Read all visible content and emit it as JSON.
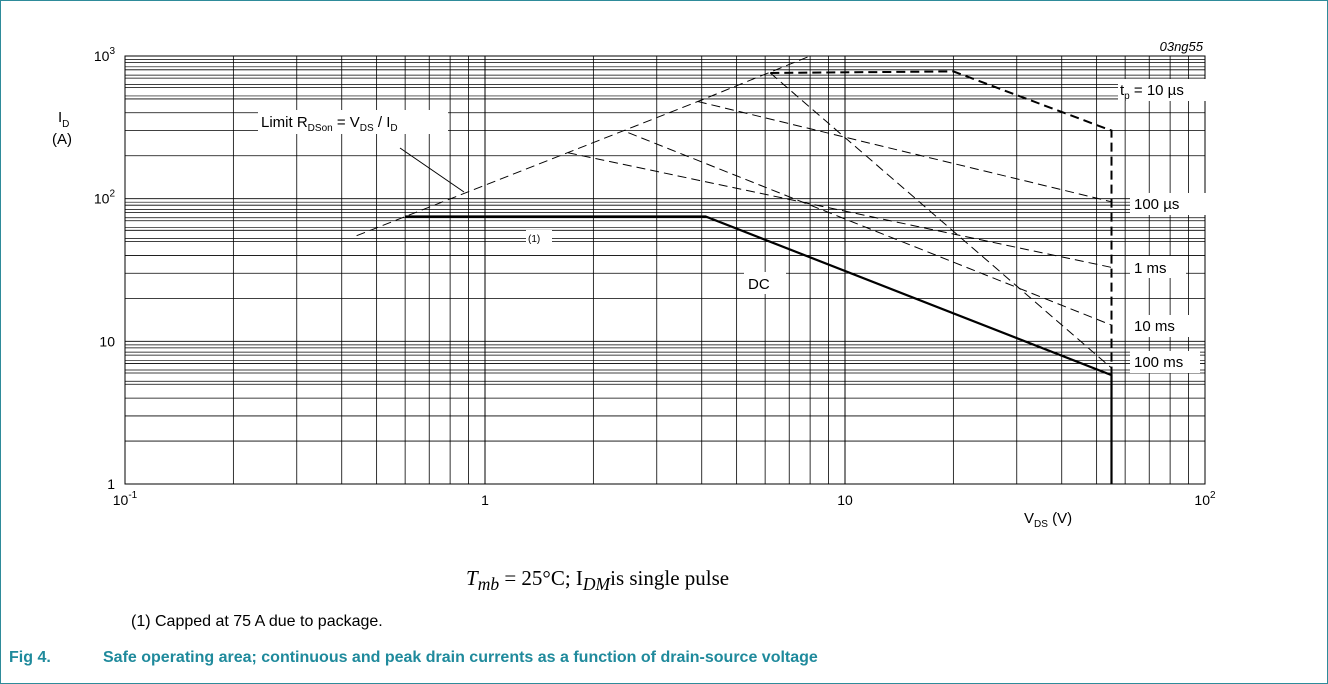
{
  "figure": {
    "code": "03ng55",
    "number": "Fig 4.",
    "caption": "Safe operating area; continuous and peak drain currents as a function of drain-source voltage",
    "condition": {
      "prefix": "T",
      "prefix_sub": "mb",
      "middle": " = 25°C; I",
      "middle_sub": "DM",
      "suffix": "is single pulse"
    },
    "footnote": "(1) Capped at 75 A due to package."
  },
  "chart_data": {
    "type": "line",
    "x_scale": "log",
    "y_scale": "log",
    "xlim": [
      0.1,
      100
    ],
    "ylim": [
      1,
      1000
    ],
    "grid": true,
    "xlabel": {
      "main": "V",
      "sub": "DS",
      "unit": " (V)"
    },
    "ylabel": {
      "main": "I",
      "sub": "D",
      "unit": "(A)"
    },
    "x_ticks": [
      {
        "value": 0.1,
        "base": "10",
        "exp": "-1"
      },
      {
        "value": 1,
        "base": "1",
        "exp": ""
      },
      {
        "value": 10,
        "base": "10",
        "exp": ""
      },
      {
        "value": 100,
        "base": "10",
        "exp": "2"
      }
    ],
    "y_ticks": [
      {
        "value": 1,
        "base": "1",
        "exp": ""
      },
      {
        "value": 10,
        "base": "10",
        "exp": ""
      },
      {
        "value": 100,
        "base": "10",
        "exp": "2"
      },
      {
        "value": 1000,
        "base": "10",
        "exp": "3"
      }
    ],
    "series": [
      {
        "name": "Limit RDSon = VDS / ID",
        "style": "dashed",
        "points": [
          [
            0.44,
            55
          ],
          [
            3.9,
            480
          ],
          [
            8,
            1000
          ]
        ]
      },
      {
        "name": "tp = 10 µs",
        "style": "dashed-bold",
        "points": [
          [
            6.2,
            760
          ],
          [
            20,
            780
          ],
          [
            55,
            300
          ],
          [
            55,
            1
          ]
        ]
      },
      {
        "name": "100 µs",
        "style": "dashed",
        "points": [
          [
            3.9,
            480
          ],
          [
            55,
            95
          ]
        ]
      },
      {
        "name": "1 ms",
        "style": "dashed",
        "points": [
          [
            1.7,
            210
          ],
          [
            55,
            33
          ]
        ]
      },
      {
        "name": "10 ms",
        "style": "dashed",
        "points": [
          [
            2.5,
            290
          ],
          [
            55,
            13
          ]
        ]
      },
      {
        "name": "100 ms",
        "style": "dashed",
        "points": [
          [
            6.2,
            760
          ],
          [
            55,
            6.5
          ]
        ]
      },
      {
        "name": "DC",
        "style": "solid",
        "points": [
          [
            0.6,
            75
          ],
          [
            4.1,
            75
          ],
          [
            55,
            5.8
          ],
          [
            55,
            1
          ]
        ]
      }
    ],
    "annotations": {
      "limit": {
        "prefix": "Limit R",
        "sub1": "DSon",
        "mid": " = V",
        "sub2": "DS",
        "slash": " / I",
        "sub3": "D"
      },
      "tp": {
        "prefix": "t",
        "sub": "p",
        "suffix": " = 10 µs"
      },
      "us100": "100 µs",
      "ms1": "1 ms",
      "ms10": "10 ms",
      "ms100": "100 ms",
      "dc": "DC",
      "cap": "(1)"
    }
  }
}
